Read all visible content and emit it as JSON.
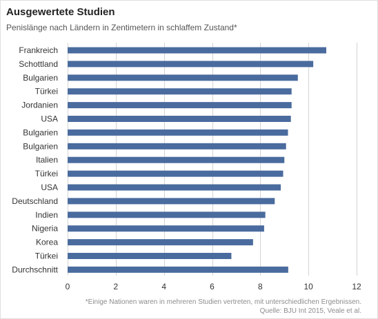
{
  "header": {
    "title": "Ausgewertete Studien",
    "subtitle": "Penislänge nach Ländern in Zentimetern in schlaffem Zustand*"
  },
  "footer": {
    "note": "*Einige Nationen waren in mehreren Studien vertreten, mit unterschiedlichen Ergebnissen.",
    "source": "Quelle: BJU Int 2015, Veale et al."
  },
  "colors": {
    "bar": "#4a6b9e",
    "grid": "#d3d3d3",
    "text": "#333333"
  },
  "chart_data": {
    "type": "bar",
    "orientation": "horizontal",
    "categories": [
      "Frankreich",
      "Schottland",
      "Bulgarien",
      "Türkei",
      "Jordanien",
      "USA",
      "Bulgarien",
      "Bulgarien",
      "Italien",
      "Türkei",
      "USA",
      "Deutschland",
      "Indien",
      "Nigeria",
      "Korea",
      "Türkei",
      "Durchschnitt"
    ],
    "values": [
      10.74,
      10.2,
      9.56,
      9.3,
      9.3,
      9.27,
      9.15,
      9.07,
      9.0,
      8.95,
      8.85,
      8.6,
      8.21,
      8.16,
      7.7,
      6.8,
      9.16
    ],
    "xlim": [
      0,
      12
    ],
    "xticks": [
      0,
      2,
      4,
      6,
      8,
      10,
      12
    ],
    "grid": true,
    "legend": false
  }
}
